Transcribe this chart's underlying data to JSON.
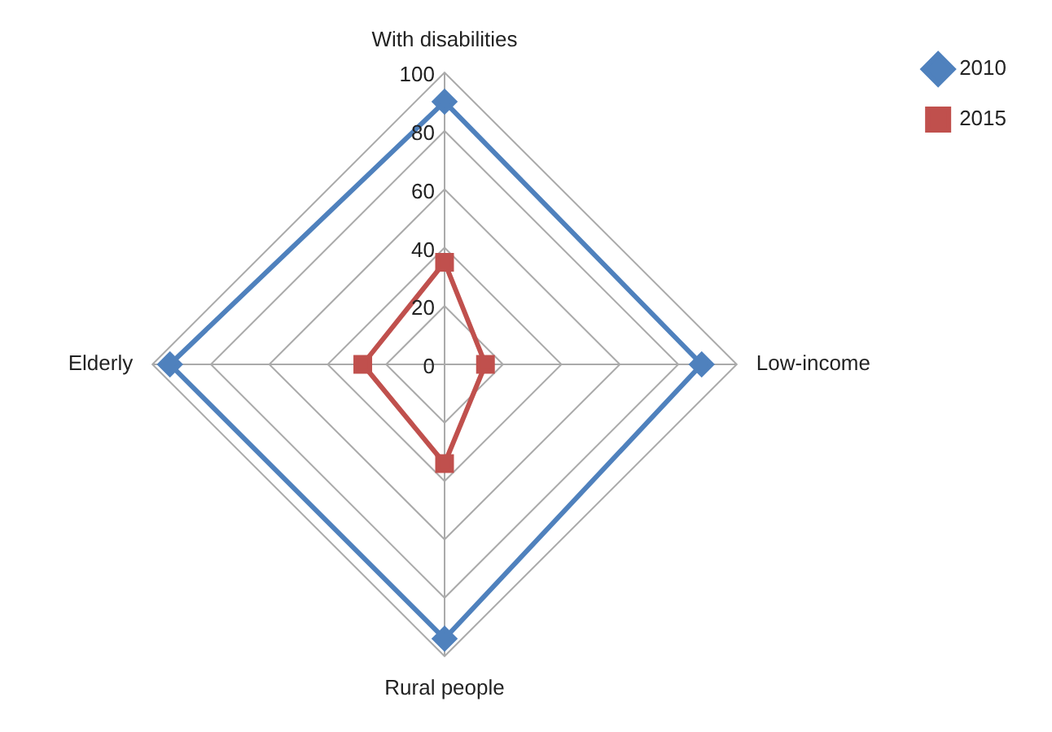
{
  "chart_data": {
    "type": "radar",
    "categories": [
      "With disabilities",
      "Low-income",
      "Rural people",
      "Elderly"
    ],
    "series": [
      {
        "name": "2010",
        "color": "#4f81bd",
        "marker": "diamond",
        "values": [
          90,
          88,
          94,
          94
        ]
      },
      {
        "name": "2015",
        "color": "#c0504d",
        "marker": "square",
        "values": [
          35,
          14,
          34,
          28
        ]
      }
    ],
    "ylim": [
      0,
      100
    ],
    "yticks": [
      0,
      20,
      40,
      60,
      80,
      100
    ],
    "grid": true,
    "legend": "top right",
    "line_style": "solid"
  }
}
